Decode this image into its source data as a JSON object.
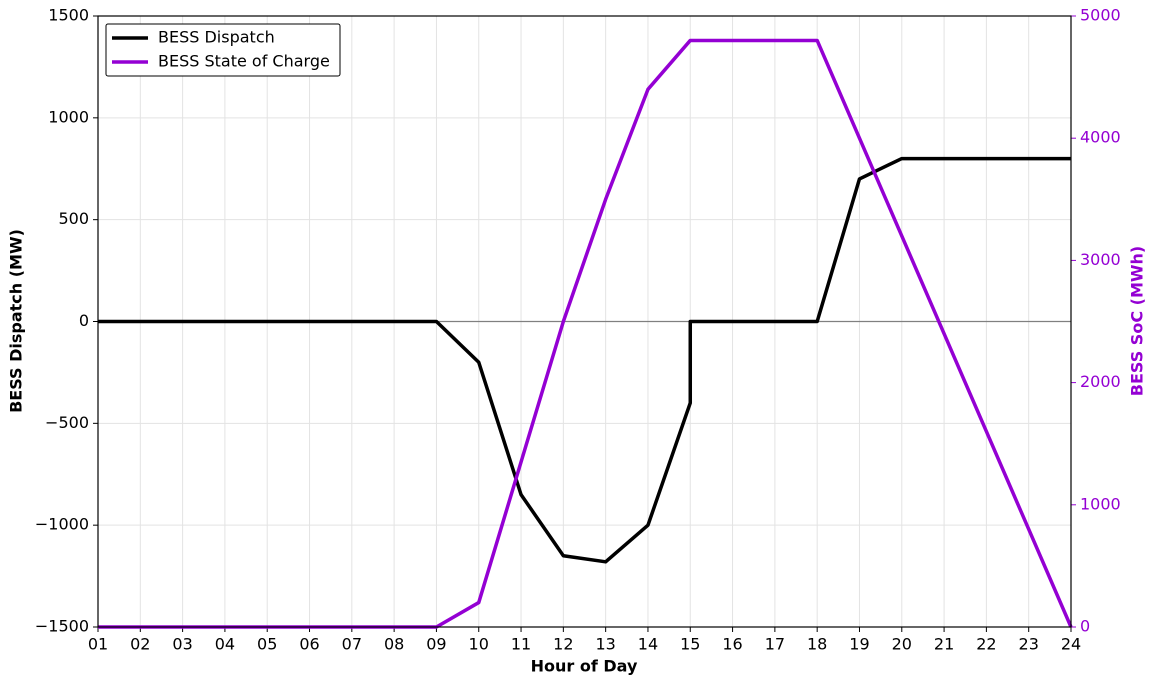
{
  "chart_data": {
    "type": "line",
    "x_label": "Hour of Day",
    "y_label": "BESS Dispatch (MW)",
    "y2_label": "BESS SoC (MWh)",
    "x": [
      1,
      2,
      3,
      4,
      5,
      6,
      7,
      8,
      9,
      10,
      11,
      12,
      13,
      14,
      15,
      15,
      16,
      17,
      18,
      19,
      20,
      21,
      22,
      23,
      24
    ],
    "series": [
      {
        "name": "BESS Dispatch",
        "color": "#000000",
        "values": [
          0,
          0,
          0,
          0,
          0,
          0,
          0,
          0,
          0,
          -200,
          -850,
          -1150,
          -1180,
          -1000,
          -400,
          0,
          0,
          0,
          0,
          700,
          800,
          800,
          800,
          800,
          800
        ]
      },
      {
        "name": "BESS State of Charge",
        "color": "#9400d3",
        "axis": "y2",
        "values": [
          0,
          0,
          0,
          0,
          0,
          0,
          0,
          0,
          0,
          200,
          1350,
          2500,
          3500,
          4400,
          4800,
          4800,
          4800,
          4800,
          4800,
          4000,
          3200,
          2400,
          1600,
          800,
          0
        ]
      }
    ],
    "hlines": [
      0
    ],
    "xlim": [
      1,
      24
    ],
    "xticks": [
      {
        "value": 1,
        "label": "01"
      },
      {
        "value": 2,
        "label": "02"
      },
      {
        "value": 3,
        "label": "03"
      },
      {
        "value": 4,
        "label": "04"
      },
      {
        "value": 5,
        "label": "05"
      },
      {
        "value": 6,
        "label": "06"
      },
      {
        "value": 7,
        "label": "07"
      },
      {
        "value": 8,
        "label": "08"
      },
      {
        "value": 9,
        "label": "09"
      },
      10,
      11,
      12,
      13,
      14,
      15,
      16,
      17,
      18,
      19,
      20,
      21,
      22,
      23,
      24
    ],
    "ylim": [
      -1500,
      1500
    ],
    "yticks": [
      {
        "value": -1500,
        "label": "−1500"
      },
      {
        "value": -1000,
        "label": "−1000"
      },
      {
        "value": -500,
        "label": "−500"
      },
      0,
      500,
      1000,
      1500
    ],
    "y2lim": [
      0,
      5000
    ],
    "y2ticks": [
      0,
      1000,
      2000,
      3000,
      4000,
      5000
    ],
    "grid": true,
    "legend": "upper-left"
  }
}
